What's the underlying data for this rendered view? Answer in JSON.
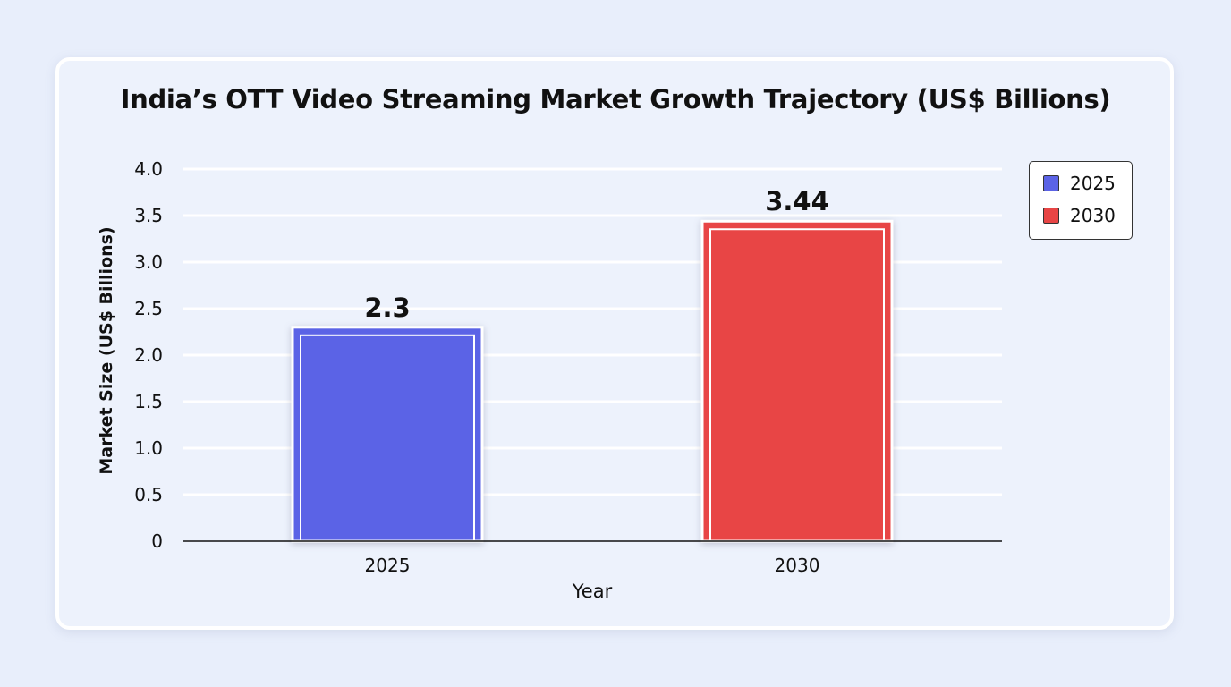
{
  "chart_data": {
    "type": "bar",
    "title": "India’s OTT Video Streaming Market Growth Trajectory (US$ Billions)",
    "xlabel": "Year",
    "ylabel": "Market Size (US$ Billions)",
    "categories": [
      "2025",
      "2030"
    ],
    "values": [
      2.3,
      3.44
    ],
    "value_labels": [
      "2.3",
      "3.44"
    ],
    "ylim": [
      0,
      4.0
    ],
    "yticks": [
      0,
      0.5,
      1.0,
      1.5,
      2.0,
      2.5,
      3.0,
      3.5,
      4.0
    ],
    "ytick_labels": [
      "0",
      "0.5",
      "1.0",
      "1.5",
      "2.0",
      "2.5",
      "3.0",
      "3.5",
      "4.0"
    ],
    "colors": [
      "#5b63e6",
      "#e84545"
    ],
    "grid": true,
    "legend": {
      "placement": "top-right",
      "entries": [
        {
          "label": "2025",
          "color": "#5b63e6"
        },
        {
          "label": "2030",
          "color": "#e84545"
        }
      ]
    }
  }
}
